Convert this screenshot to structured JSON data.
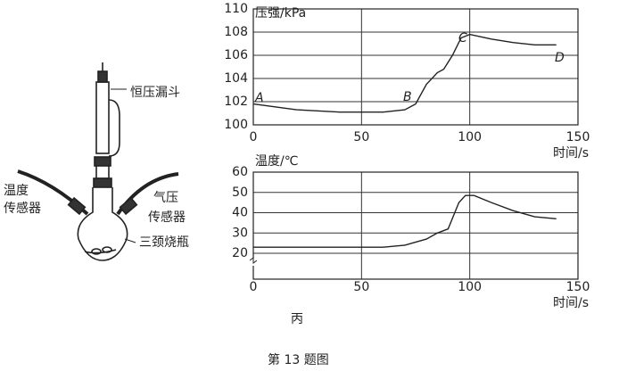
{
  "chart_data": [
    {
      "type": "line",
      "y_label": "压强/kPa",
      "x_label": "时间/s",
      "x": [
        0,
        20,
        40,
        60,
        70,
        75,
        80,
        85,
        88,
        92,
        96,
        100,
        110,
        120,
        130,
        140
      ],
      "values": [
        101.8,
        101.3,
        101.1,
        101.1,
        101.3,
        101.8,
        103.5,
        104.5,
        104.8,
        106,
        107.5,
        107.8,
        107.4,
        107.1,
        106.9,
        106.9
      ],
      "color": "#222222",
      "annotations": [
        "A",
        "B",
        "C",
        "D"
      ],
      "xlim": [
        0,
        150
      ],
      "xticks": [
        0,
        50,
        100,
        150
      ],
      "ylim": [
        100,
        110
      ],
      "yticks": [
        100,
        102,
        104,
        106,
        108,
        110
      ],
      "grid": true
    },
    {
      "type": "line",
      "y_label": "温度/℃",
      "x_label": "时间/s",
      "x": [
        0,
        50,
        60,
        70,
        80,
        85,
        90,
        95,
        98,
        102,
        110,
        120,
        130,
        140
      ],
      "values": [
        23,
        23,
        23,
        24,
        27,
        30,
        32,
        45,
        48.5,
        48.5,
        45,
        41,
        38,
        37
      ],
      "color": "#222222",
      "xlim": [
        0,
        150
      ],
      "xticks": [
        0,
        50,
        100,
        150
      ],
      "ylim": [
        20,
        60
      ],
      "yticks": [
        20,
        30,
        40,
        50,
        60
      ],
      "grid": true
    }
  ],
  "diagram": {
    "labels": [
      "恒压漏斗",
      "温度",
      "传感器",
      "气压",
      "传感器",
      "三颈烧瓶"
    ]
  },
  "panel_label": "丙",
  "caption": "第 13 题图"
}
